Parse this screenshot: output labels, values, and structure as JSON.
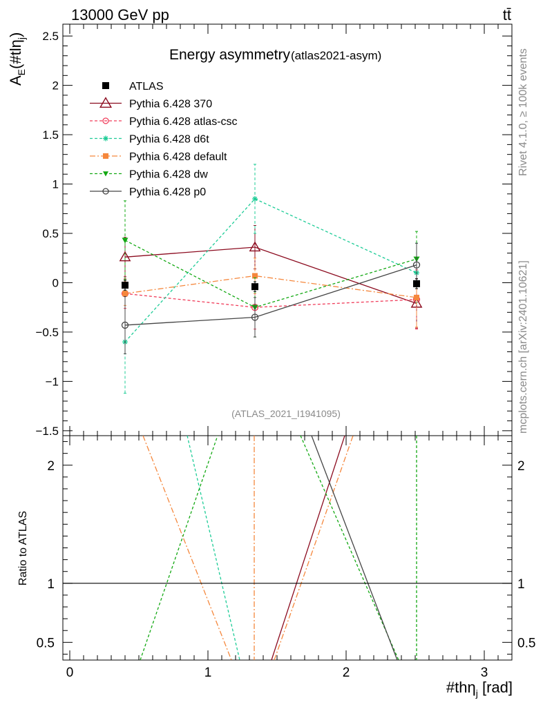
{
  "header": {
    "energy_process": "13000 GeV pp",
    "process_symbol": "tt̄"
  },
  "side_labels": {
    "rivet": "Rivet 4.1.0, ≥ 100k events",
    "mcplots": "mcplots.cern.ch [arXiv:2401.10621]"
  },
  "colors": {
    "ATLAS": "#000000",
    "Pythia 6.428 370": "#8b0a1e",
    "Pythia 6.428 atlas-csc": "#f03c5a",
    "Pythia 6.428 d6t": "#1ccc96",
    "Pythia 6.428 default": "#f5873c",
    "Pythia 6.428 dw": "#12a812",
    "Pythia 6.428 p0": "#444444"
  },
  "chart_data": [
    {
      "type": "line",
      "title": "Energy asymmetry",
      "subtitle": "(atlas2021-asym)",
      "ylabel_main": "A",
      "ylabel_sub": "E",
      "ylabel_tail": "(#tlη",
      "ylabel_tail_sub": "j",
      "ylabel_close": ")",
      "analysis_id": "(ATLAS_2021_I1941095)",
      "ylim": [
        -1.55,
        2.62
      ],
      "xlim": [
        -0.05,
        3.2
      ],
      "y_ticks": [
        -1.5,
        -1,
        -0.5,
        0,
        0.5,
        1,
        1.5,
        2,
        2.5
      ],
      "y_tick_labels": [
        "−1.5",
        "−1",
        "−0.5",
        "0",
        "0.5",
        "1",
        "1.5",
        "2",
        "2.5"
      ],
      "legend_position": "top-left",
      "series": [
        {
          "name": "ATLAS",
          "legend": "ATLAS",
          "marker": "square-filled",
          "line": "none",
          "x": [
            0.4,
            1.34,
            2.51
          ],
          "y": [
            -0.025,
            -0.04,
            -0.01
          ],
          "err_low": [
            0.05,
            0.05,
            0.05
          ],
          "err_high": [
            0.05,
            0.05,
            0.05
          ]
        },
        {
          "name": "Pythia 6.428 370",
          "legend": "Pythia 6.428 370",
          "marker": "triangle-open",
          "line": "solid",
          "x": [
            0.4,
            1.34,
            2.51
          ],
          "y": [
            0.26,
            0.36,
            -0.21
          ],
          "err_low": [
            0.2,
            0.22,
            0.25
          ],
          "err_high": [
            0.2,
            0.22,
            0.25
          ]
        },
        {
          "name": "Pythia 6.428 atlas-csc",
          "legend": "Pythia 6.428 atlas-csc",
          "marker": "circle-open",
          "line": "dashed",
          "x": [
            0.4,
            1.34,
            2.51
          ],
          "y": [
            -0.11,
            -0.25,
            -0.17
          ],
          "err_low": [
            0.15,
            0.22,
            0.3
          ],
          "err_high": [
            0.15,
            0.22,
            0.3
          ]
        },
        {
          "name": "Pythia 6.428 d6t",
          "legend": "Pythia 6.428 d6t",
          "marker": "star",
          "line": "dashed",
          "x": [
            0.4,
            1.34,
            2.51
          ],
          "y": [
            -0.6,
            0.85,
            0.1
          ],
          "err_low": [
            0.52,
            0.35,
            0.3
          ],
          "err_high": [
            0.52,
            0.35,
            0.3
          ]
        },
        {
          "name": "Pythia 6.428 default",
          "legend": "Pythia 6.428 default",
          "marker": "square-filled",
          "line": "dashdot",
          "x": [
            0.4,
            1.34,
            2.51
          ],
          "y": [
            -0.11,
            0.07,
            -0.15
          ],
          "err_low": [
            0.12,
            0.18,
            0.3
          ],
          "err_high": [
            0.12,
            0.18,
            0.3
          ]
        },
        {
          "name": "Pythia 6.428 dw",
          "legend": "Pythia 6.428 dw",
          "marker": "triangle-down-filled",
          "line": "dashed",
          "x": [
            0.4,
            1.34,
            2.51
          ],
          "y": [
            0.43,
            -0.25,
            0.24
          ],
          "err_low": [
            0.4,
            0.3,
            0.28
          ],
          "err_high": [
            0.4,
            0.3,
            0.28
          ]
        },
        {
          "name": "Pythia 6.428 p0",
          "legend": "Pythia 6.428 p0",
          "marker": "circle-open",
          "line": "solid",
          "x": [
            0.4,
            1.34,
            2.51
          ],
          "y": [
            -0.43,
            -0.35,
            0.18
          ],
          "err_low": [
            0.29,
            0.2,
            0.22
          ],
          "err_high": [
            0.29,
            0.2,
            0.22
          ]
        }
      ]
    },
    {
      "type": "line",
      "title": "Ratio to ATLAS",
      "ylabel": "Ratio to ATLAS",
      "xlabel": "#thη",
      "xlabel_sub": "j",
      "xlabel_unit": " [rad]",
      "ylim": [
        0.35,
        2.25
      ],
      "xlim": [
        -0.05,
        3.2
      ],
      "x_ticks": [
        0,
        1,
        2,
        3
      ],
      "x_tick_labels": [
        "0",
        "1",
        "2",
        "3"
      ],
      "y_ticks": [
        0.5,
        1,
        2
      ],
      "y_tick_labels": [
        "0.5",
        "1",
        "2"
      ],
      "reference_line": 1,
      "vertical_lines": [
        {
          "series": "Pythia 6.428 default",
          "x": 1.335
        },
        {
          "series": "Pythia 6.428 dw",
          "x": 2.51
        }
      ],
      "series": [
        {
          "name": "Pythia 6.428 370",
          "x": [
            1.46,
            1.99
          ],
          "y": [
            0.35,
            2.25
          ]
        },
        {
          "name": "Pythia 6.428 d6t",
          "x": [
            0.85,
            1.23
          ],
          "y": [
            2.25,
            0.35
          ]
        },
        {
          "name": "Pythia 6.428 default",
          "x": [
            0.53,
            1.17
          ],
          "y": [
            2.25,
            0.35
          ]
        },
        {
          "name": "Pythia 6.428 default ",
          "x": [
            1.48,
            2.05
          ],
          "y": [
            0.35,
            2.25
          ]
        },
        {
          "name": "Pythia 6.428 dw",
          "x": [
            0.51,
            1.07
          ],
          "y": [
            0.35,
            2.25
          ]
        },
        {
          "name": "Pythia 6.428 dw ",
          "x": [
            1.67,
            2.38
          ],
          "y": [
            2.25,
            0.35
          ]
        },
        {
          "name": "Pythia 6.428 p0",
          "x": [
            1.75,
            2.37
          ],
          "y": [
            2.25,
            0.35
          ]
        }
      ]
    }
  ]
}
